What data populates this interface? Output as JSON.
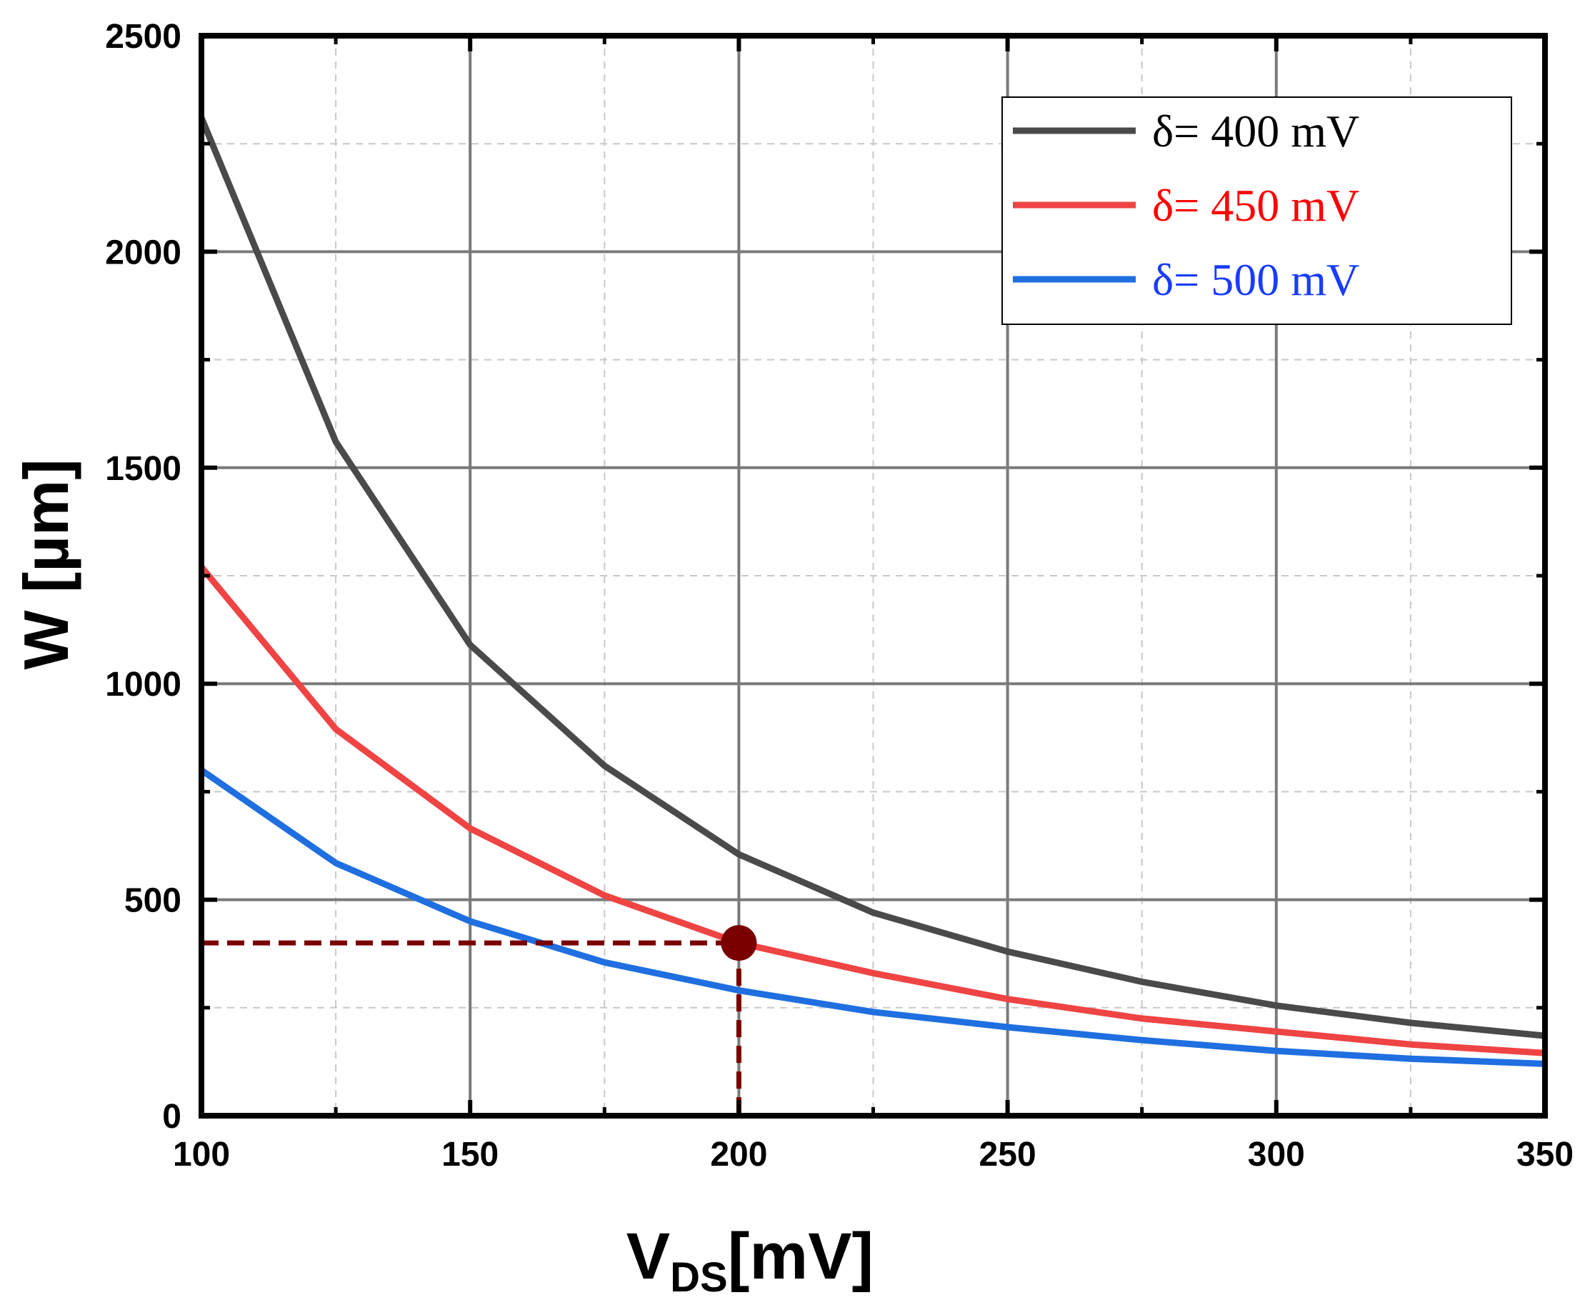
{
  "chart_data": {
    "type": "line",
    "xlabel": {
      "main": "V",
      "sub": "DS",
      "unit": "[mV]"
    },
    "ylabel": "W [µm]",
    "xlim": [
      100,
      350
    ],
    "ylim": [
      0,
      2500
    ],
    "x_ticks": [
      100,
      150,
      200,
      250,
      300,
      350
    ],
    "y_ticks": [
      0,
      500,
      1000,
      1500,
      2000,
      2500
    ],
    "x_minor": [
      125,
      175,
      225,
      275,
      325
    ],
    "y_minor": [
      250,
      750,
      1250,
      1750,
      2250
    ],
    "grid": true,
    "legend_position": "top-right",
    "series": [
      {
        "name": "δ= 400 mV",
        "color": "#4a4a4a",
        "legend_color": "#000000",
        "x": [
          100,
          125,
          150,
          175,
          200,
          225,
          250,
          275,
          300,
          325,
          350
        ],
        "y": [
          2310,
          1560,
          1090,
          810,
          605,
          470,
          380,
          310,
          255,
          215,
          185
        ]
      },
      {
        "name": "δ= 450 mV",
        "color": "#ef4444",
        "legend_color": "#ff0000",
        "x": [
          100,
          125,
          150,
          175,
          200,
          225,
          250,
          275,
          300,
          325,
          350
        ],
        "y": [
          1270,
          895,
          665,
          510,
          400,
          330,
          270,
          225,
          195,
          165,
          145
        ]
      },
      {
        "name": "δ= 500 mV",
        "color": "#1f6fe0",
        "legend_color": "#1a3cff",
        "x": [
          100,
          125,
          150,
          175,
          200,
          225,
          250,
          275,
          300,
          325,
          350
        ],
        "y": [
          800,
          585,
          450,
          355,
          290,
          240,
          205,
          175,
          150,
          132,
          120
        ]
      }
    ],
    "annotation": {
      "x": 200,
      "y": 400,
      "color": "#7a0000",
      "style": "dashed guide lines with marker"
    }
  }
}
